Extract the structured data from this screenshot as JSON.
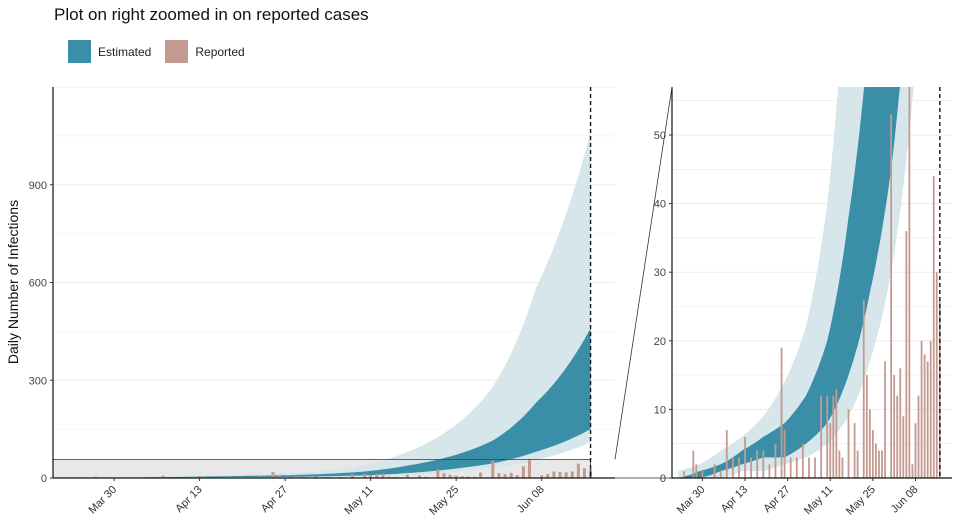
{
  "title": "Plot on right zoomed in on reported cases",
  "colors": {
    "estimated_band": "#3a8ea8",
    "estimated_ci": "#d6e6eb",
    "reported": "#c49a90",
    "zoom_box": "#e8e8e8",
    "grid": "#ebebeb"
  },
  "legend": {
    "estimated_label": "Estimated",
    "reported_label": "Reported"
  },
  "chart_data": [
    {
      "panel": "left",
      "type": "area",
      "ylabel": "Daily Number of Infections",
      "xlabel": "",
      "ylim": [
        0,
        1200
      ],
      "yticks": [
        0,
        300,
        600,
        900
      ],
      "xticks": [
        "Mar 30",
        "Apr 13",
        "Apr 27",
        "May 11",
        "May 25",
        "Jun 08"
      ],
      "xlim": [
        "2020-03-20",
        "2020-06-20"
      ],
      "current_date_line": "2020-06-16",
      "zoom_region": {
        "y": [
          0,
          57
        ],
        "x": [
          "2020-03-20",
          "2020-06-16"
        ]
      },
      "series": [
        {
          "name": "Estimated",
          "dates": [
            "2020-03-22",
            "2020-03-29",
            "2020-04-05",
            "2020-04-12",
            "2020-04-19",
            "2020-04-26",
            "2020-05-03",
            "2020-05-10",
            "2020-05-17",
            "2020-05-24",
            "2020-05-31",
            "2020-06-07",
            "2020-06-16"
          ],
          "low": [
            0,
            0,
            1,
            2,
            3,
            3,
            5,
            8,
            15,
            27,
            45,
            80,
            150
          ],
          "high": [
            0,
            1,
            2,
            4,
            6,
            8,
            12,
            20,
            38,
            66,
            115,
            230,
            460
          ],
          "ci_low": [
            0,
            0,
            0,
            1,
            1,
            2,
            3,
            5,
            9,
            17,
            30,
            55,
            110
          ],
          "ci_high": [
            1,
            2,
            4,
            6,
            9,
            14,
            22,
            40,
            80,
            150,
            280,
            580,
            1060
          ]
        },
        {
          "name": "Reported",
          "dates": [
            "2020-03-24",
            "2020-03-27",
            "2020-03-28",
            "2020-03-30",
            "2020-04-03",
            "2020-04-05",
            "2020-04-07",
            "2020-04-09",
            "2020-04-11",
            "2020-04-13",
            "2020-04-15",
            "2020-04-17",
            "2020-04-19",
            "2020-04-21",
            "2020-04-23",
            "2020-04-25",
            "2020-04-26",
            "2020-04-28",
            "2020-04-30",
            "2020-05-02",
            "2020-05-04",
            "2020-05-06",
            "2020-05-08",
            "2020-05-10",
            "2020-05-11",
            "2020-05-12",
            "2020-05-13",
            "2020-05-14",
            "2020-05-15",
            "2020-05-17",
            "2020-05-19",
            "2020-05-20",
            "2020-05-22",
            "2020-05-23",
            "2020-05-24",
            "2020-05-25",
            "2020-05-26",
            "2020-05-27",
            "2020-05-28",
            "2020-05-29",
            "2020-05-31",
            "2020-06-01",
            "2020-06-02",
            "2020-06-03",
            "2020-06-04",
            "2020-06-05",
            "2020-06-06",
            "2020-06-07",
            "2020-06-08",
            "2020-06-09",
            "2020-06-10",
            "2020-06-11",
            "2020-06-12",
            "2020-06-13",
            "2020-06-14",
            "2020-06-15",
            "2020-06-16"
          ],
          "values": [
            1,
            4,
            2,
            1,
            2,
            1,
            7,
            3,
            3,
            6,
            3,
            4,
            4,
            2,
            5,
            19,
            7,
            3,
            3,
            5,
            3,
            3,
            12,
            12,
            8,
            12,
            13,
            4,
            3,
            10,
            8,
            4,
            26,
            15,
            10,
            7,
            5,
            4,
            4,
            17,
            53,
            15,
            12,
            16,
            9,
            36,
            57,
            2,
            8,
            12,
            20,
            18,
            17,
            20,
            44,
            30,
            26
          ]
        }
      ]
    },
    {
      "panel": "right",
      "type": "area",
      "ylim": [
        0,
        57
      ],
      "yticks": [
        0,
        10,
        20,
        30,
        40,
        50
      ],
      "xticks": [
        "Mar 30",
        "Apr 13",
        "Apr 27",
        "May 11",
        "May 25",
        "Jun 08"
      ],
      "xlim": [
        "2020-03-20",
        "2020-06-20"
      ],
      "current_date_line": "2020-06-16"
    }
  ]
}
